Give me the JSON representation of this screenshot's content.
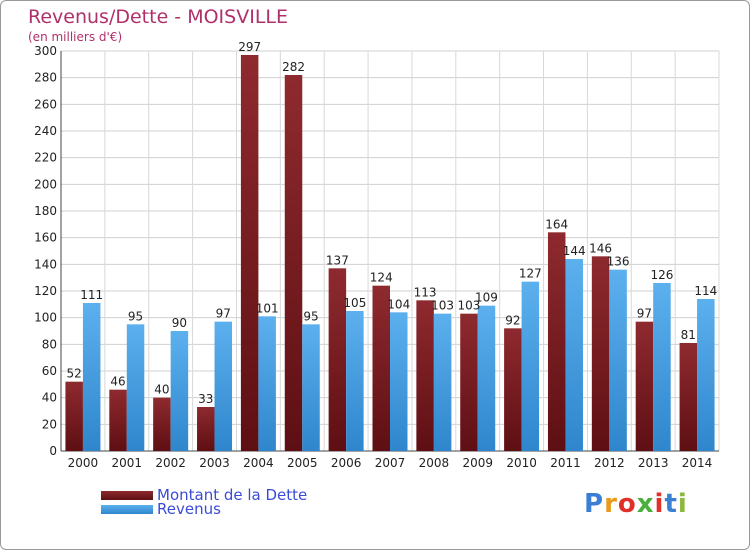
{
  "chart_data": {
    "type": "bar",
    "title": "Revenus/Dette - MOISVILLE",
    "subtitle": "(en milliers d'€)",
    "categories": [
      "2000",
      "2001",
      "2002",
      "2003",
      "2004",
      "2005",
      "2006",
      "2007",
      "2008",
      "2009",
      "2010",
      "2011",
      "2012",
      "2013",
      "2014"
    ],
    "series": [
      {
        "name": "Montant de la Dette",
        "color": "#7a1a1e",
        "values": [
          52,
          46,
          40,
          33,
          297,
          282,
          137,
          124,
          113,
          103,
          92,
          164,
          146,
          97,
          81
        ]
      },
      {
        "name": "Revenus",
        "color": "#4aa3e6",
        "values": [
          111,
          95,
          90,
          97,
          101,
          95,
          105,
          104,
          103,
          109,
          127,
          144,
          136,
          126,
          114
        ]
      }
    ],
    "ylim": [
      0,
      300
    ],
    "yticks": [
      0,
      20,
      40,
      60,
      80,
      100,
      120,
      140,
      160,
      180,
      200,
      220,
      240,
      260,
      280,
      300
    ],
    "grid": true,
    "legend_position": "bottom-left"
  },
  "logo": {
    "text": "Proxiti"
  }
}
